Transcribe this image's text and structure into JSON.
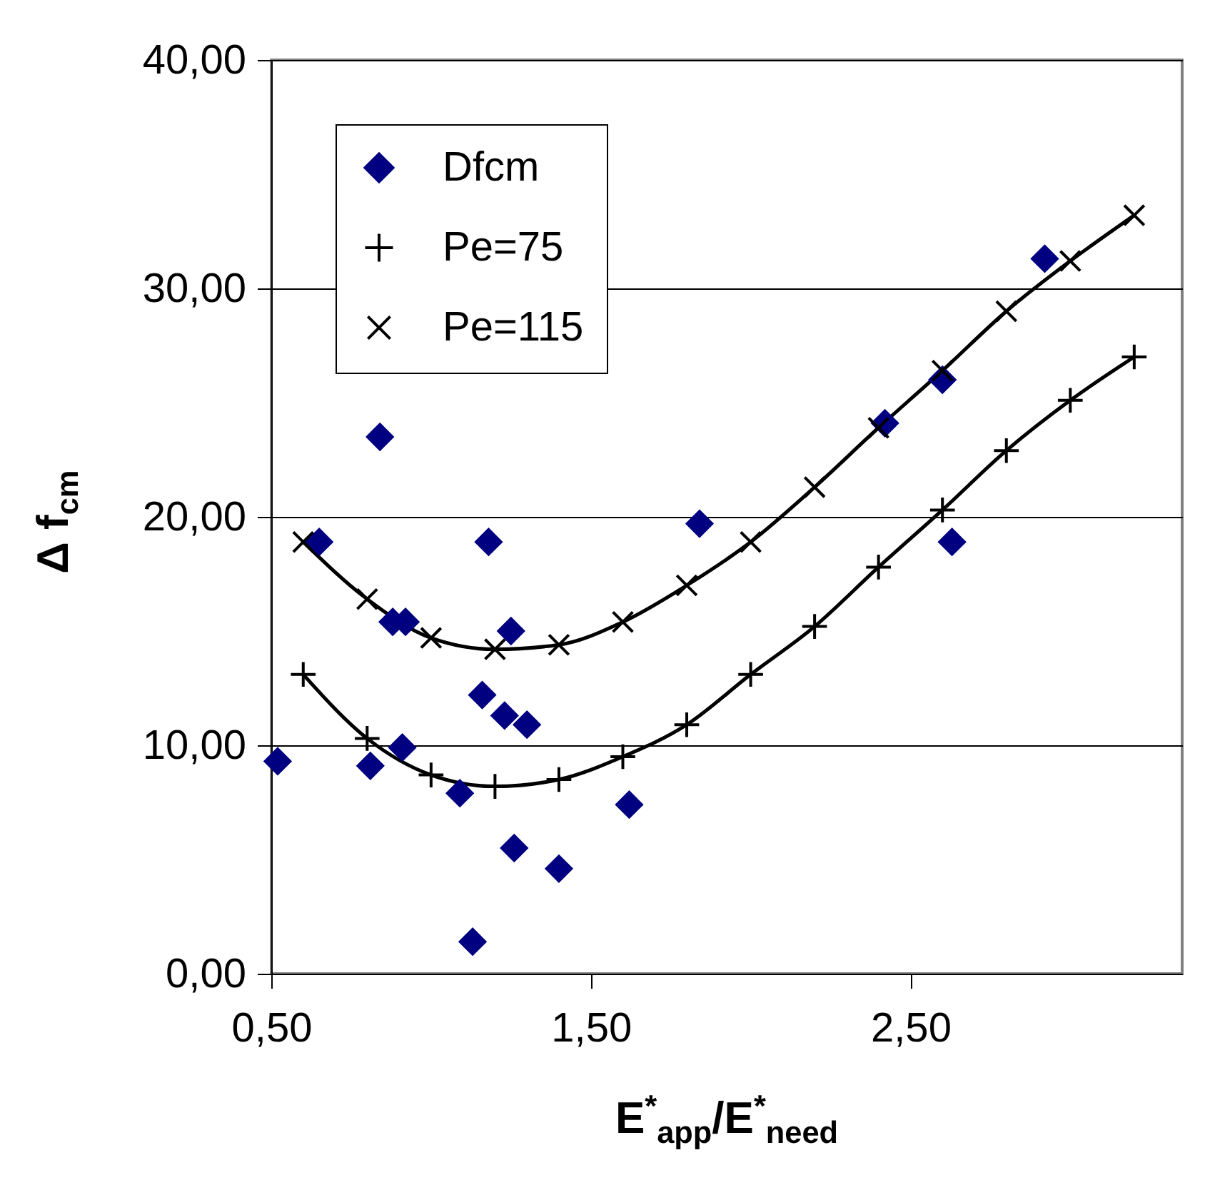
{
  "chart_data": {
    "type": "scatter",
    "xlabel": "E$^{*}$$_{app}$/E$^{*}$$_{need}$",
    "ylabel": "Δ f$_{cm}$",
    "xlim": [
      0.5,
      3.35
    ],
    "xticks": [
      {
        "value": 0.5,
        "label": "0,50"
      },
      {
        "value": 1.5,
        "label": "1,50"
      },
      {
        "value": 2.5,
        "label": "2,50"
      }
    ],
    "ylim": [
      0,
      40
    ],
    "yticks": [
      {
        "value": 0,
        "label": "0,00"
      },
      {
        "value": 10,
        "label": "10,00"
      },
      {
        "value": 20,
        "label": "20,00"
      },
      {
        "value": 30,
        "label": "30,00"
      },
      {
        "value": 40,
        "label": "40,00"
      }
    ],
    "grid": "y",
    "legend": "top left",
    "series": [
      {
        "name": "Dfcm",
        "type": "scatter",
        "marker": "diamond",
        "color": "#000080",
        "x": [
          0.52,
          0.65,
          0.84,
          0.81,
          0.88,
          0.92,
          0.91,
          1.09,
          1.13,
          1.16,
          1.18,
          1.23,
          1.25,
          1.26,
          1.3,
          1.4,
          1.62,
          1.84,
          2.42,
          2.6,
          2.63,
          2.92
        ],
        "values": [
          9.3,
          18.9,
          23.5,
          9.1,
          15.4,
          15.4,
          9.9,
          7.9,
          1.4,
          12.2,
          18.9,
          11.3,
          15,
          5.5,
          10.9,
          4.6,
          7.4,
          19.7,
          24.1,
          26,
          18.9,
          31.3
        ]
      },
      {
        "name": "Pe=75",
        "type": "line",
        "marker": "cross",
        "color": "#000000",
        "x": [
          0.6,
          0.8,
          1.0,
          1.2,
          1.4,
          1.6,
          1.8,
          2.0,
          2.2,
          2.4,
          2.6,
          2.8,
          3.0,
          3.2
        ],
        "values": [
          13.1,
          10.3,
          8.7,
          8.2,
          8.5,
          9.5,
          10.9,
          13.1,
          15.2,
          17.8,
          20.3,
          22.9,
          25.1,
          27.0
        ]
      },
      {
        "name": "Pe=115",
        "type": "line",
        "marker": "x",
        "color": "#000000",
        "x": [
          0.6,
          0.8,
          1.0,
          1.2,
          1.4,
          1.6,
          1.8,
          2.0,
          2.2,
          2.4,
          2.6,
          2.8,
          3.0,
          3.2
        ],
        "values": [
          18.9,
          16.4,
          14.7,
          14.2,
          14.4,
          15.4,
          17.0,
          18.9,
          21.3,
          23.9,
          26.4,
          29.0,
          31.2,
          33.2
        ]
      }
    ]
  }
}
